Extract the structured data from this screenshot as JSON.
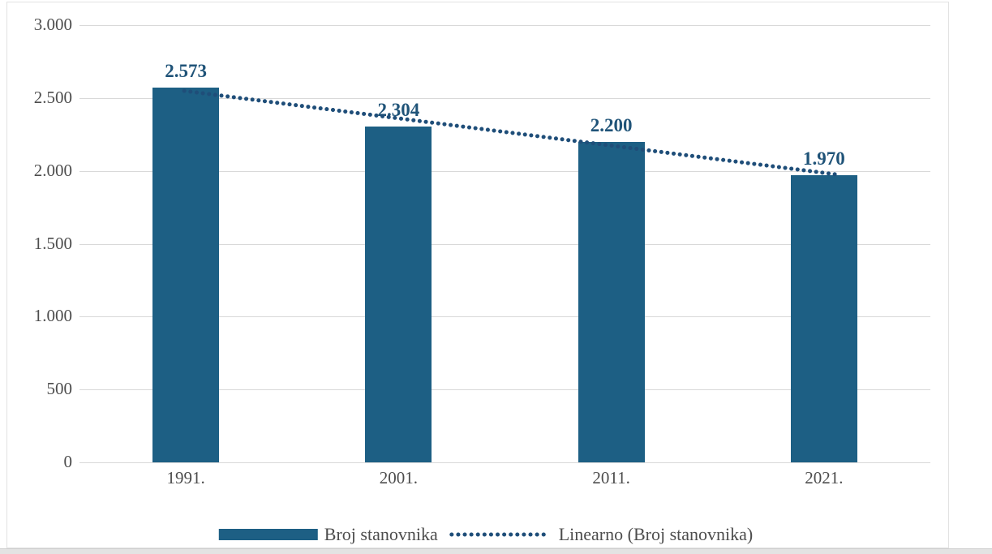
{
  "chart_data": {
    "type": "bar",
    "title": "",
    "xlabel": "",
    "ylabel": "",
    "categories": [
      "1991.",
      "2001.",
      "2011.",
      "2021."
    ],
    "series": [
      {
        "name": "Broj stanovnika",
        "values": [
          2573,
          2304,
          2200,
          1970
        ],
        "value_labels": [
          "2.573",
          "2.304",
          "2.200",
          "1.970"
        ]
      }
    ],
    "trendline": {
      "name": "Linearno (Broj stanovnika)",
      "type": "linear",
      "style": "dotted",
      "start_value": 2549,
      "end_value": 1975
    },
    "ylim": [
      0,
      3000
    ],
    "y_ticks": [
      {
        "label": "3.000",
        "value": 3000
      },
      {
        "label": "2.500",
        "value": 2500
      },
      {
        "label": "2.000",
        "value": 2000
      },
      {
        "label": "1.500",
        "value": 1500
      },
      {
        "label": "1.000",
        "value": 1000
      },
      {
        "label": "500",
        "value": 500
      },
      {
        "label": "0",
        "value": 0
      }
    ],
    "grid": true,
    "legend_position": "bottom",
    "legend": {
      "items": [
        {
          "label": "Broj stanovnika",
          "marker": "bar-swatch"
        },
        {
          "label": "Linearno (Broj stanovnika)",
          "marker": "dotted-line"
        }
      ]
    },
    "colors": {
      "bar": "#1d5f84",
      "trendline": "#1f4e79",
      "value_label_text": "#1f5378",
      "tick_text": "#4d4d4d",
      "gridline": "#d9d9d9",
      "frame_border": "#e2e2e2"
    }
  }
}
